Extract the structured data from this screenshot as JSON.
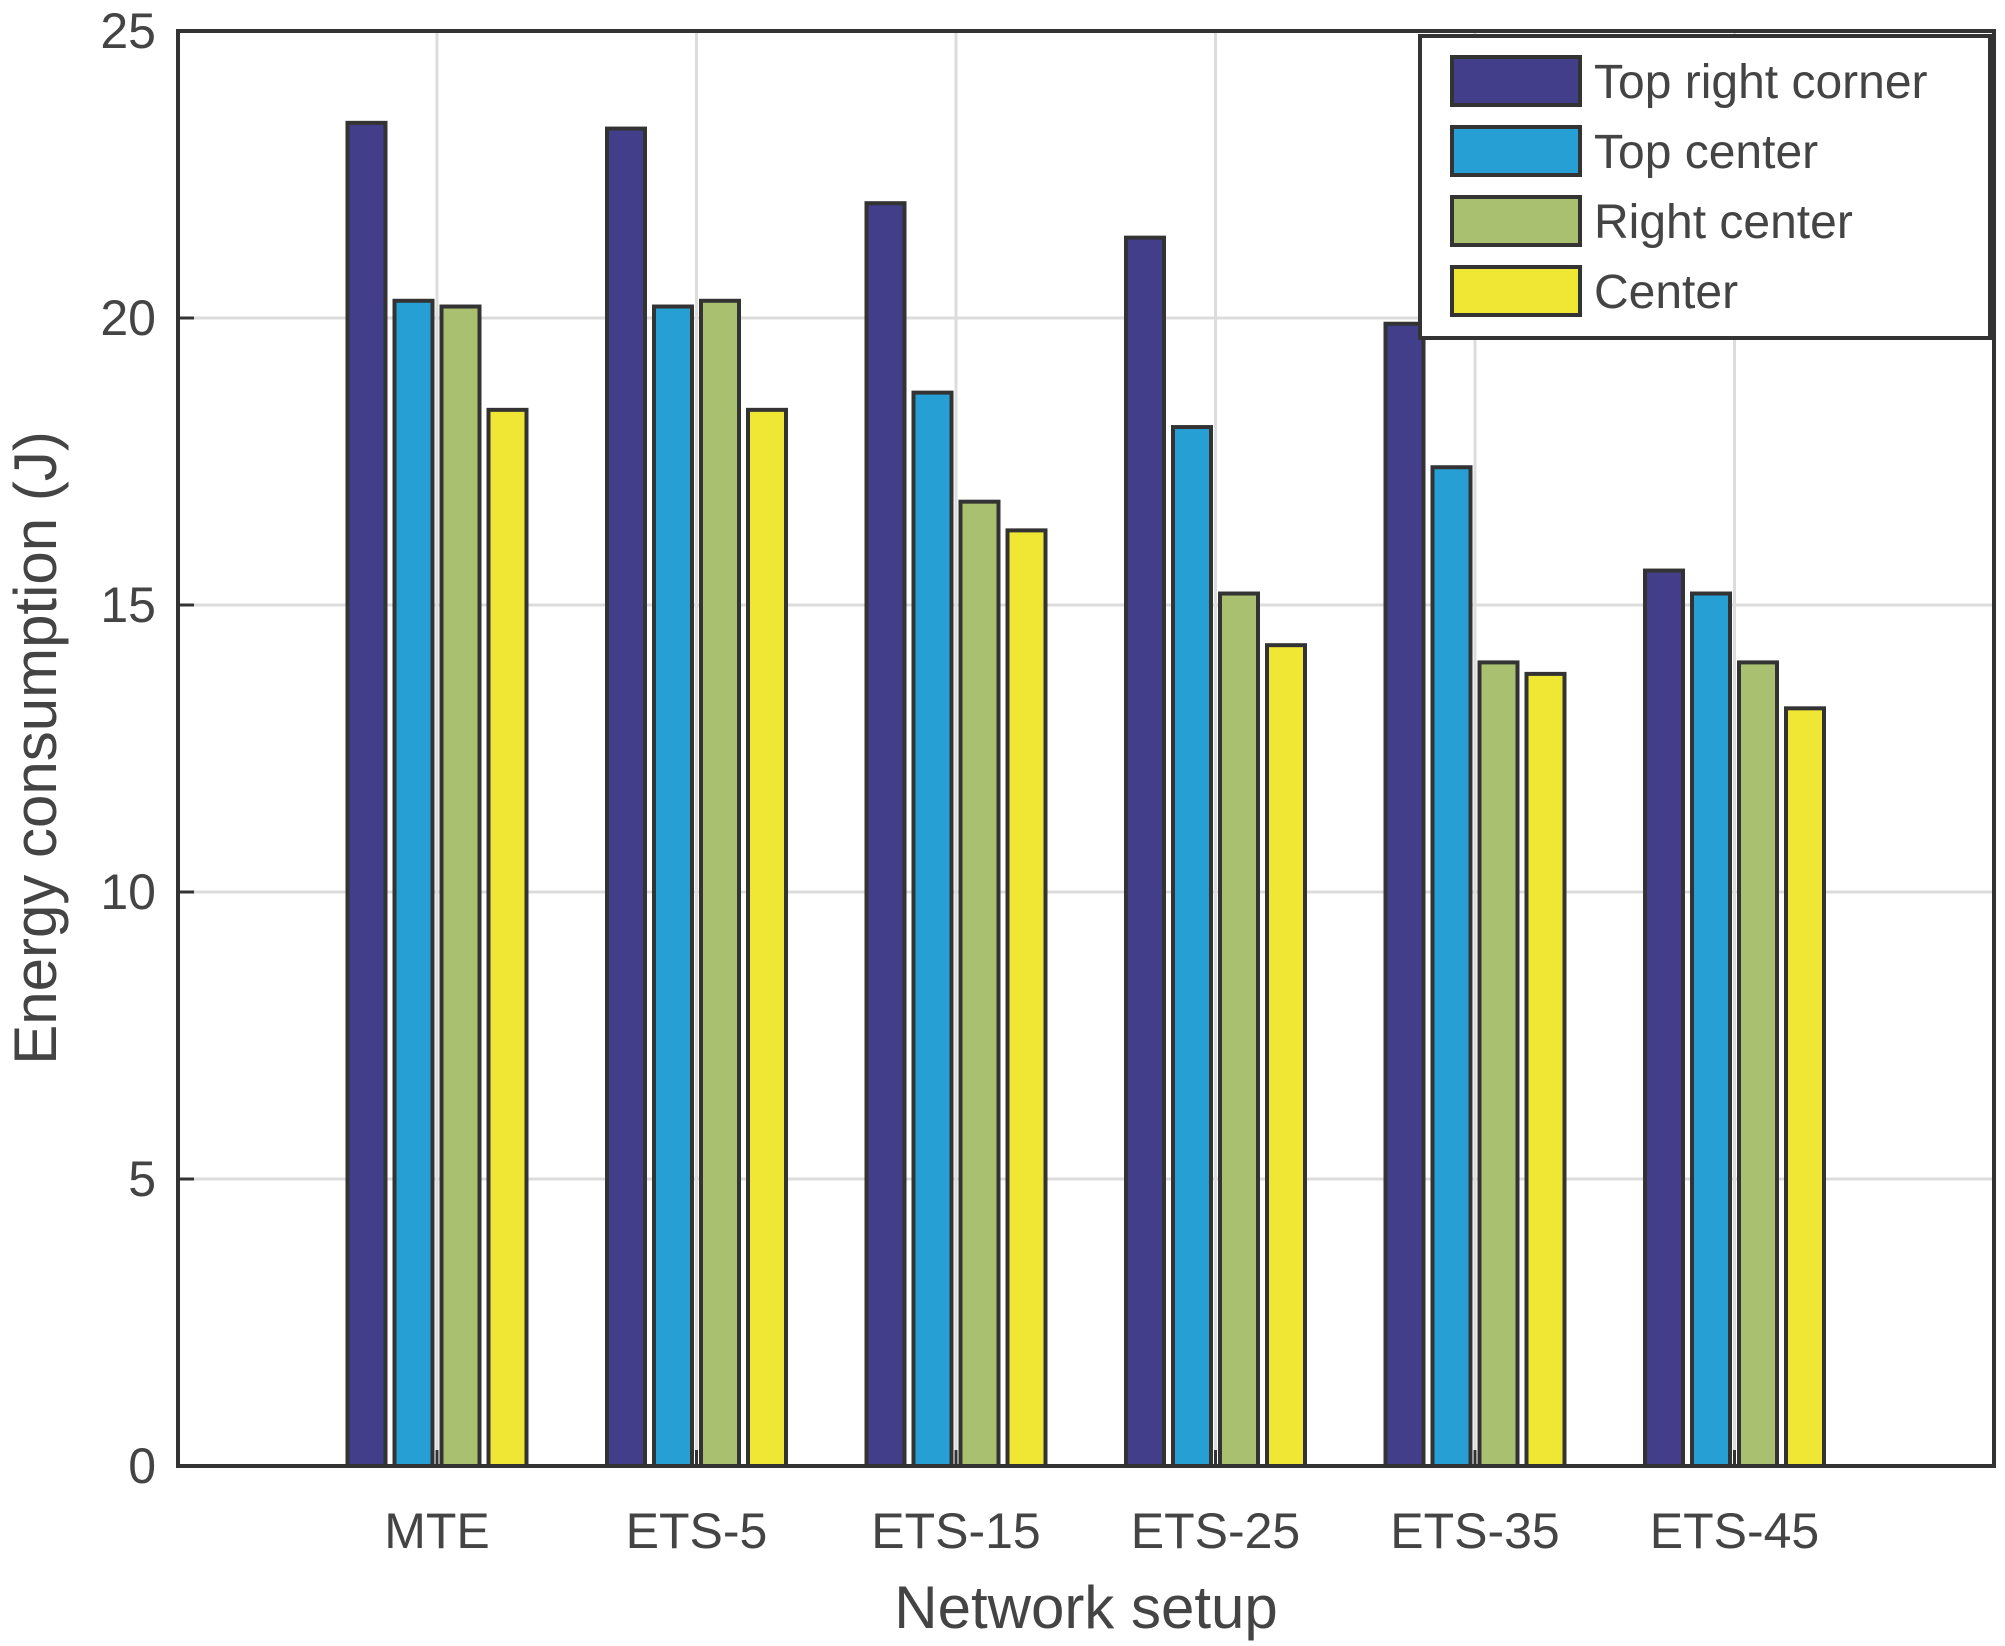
{
  "chart_data": {
    "type": "bar",
    "title": "",
    "xlabel": "Network setup",
    "ylabel": "Energy consumption (J)",
    "ylim": [
      0,
      25
    ],
    "yticks": [
      "0",
      "5",
      "10",
      "15",
      "20",
      "25"
    ],
    "grid": true,
    "legend_position": "top-right",
    "categories": [
      "MTE",
      "ETS-5",
      "ETS-15",
      "ETS-25",
      "ETS-35",
      "ETS-45"
    ],
    "series": [
      {
        "name": "Top right corner",
        "color": "#423e8a",
        "values": [
          23.4,
          23.3,
          22.0,
          21.4,
          19.9,
          15.6
        ]
      },
      {
        "name": "Top center",
        "color": "#26a0d4",
        "values": [
          20.3,
          20.2,
          18.7,
          18.1,
          17.4,
          15.2
        ]
      },
      {
        "name": "Right center",
        "color": "#a8c070",
        "values": [
          20.2,
          20.3,
          16.8,
          15.2,
          14.0,
          14.0
        ]
      },
      {
        "name": "Center",
        "color": "#f0e634",
        "values": [
          18.4,
          18.4,
          16.3,
          14.3,
          13.8,
          13.2
        ]
      }
    ]
  }
}
